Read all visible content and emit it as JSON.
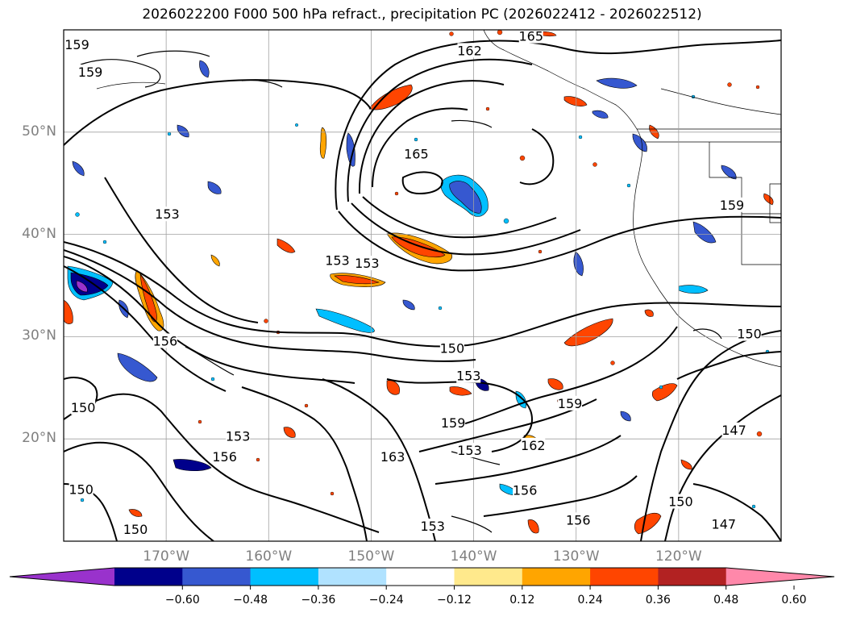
{
  "title": "2026022200 F000 500 hPa refract., precipitation PC (2026022412 - 2026022512)",
  "map": {
    "extent": {
      "lon_min": -180,
      "lon_max": -110,
      "lat_min": 10,
      "lat_max": 60
    },
    "lon_ticks": [
      {
        "lon": -170,
        "label": "170°W"
      },
      {
        "lon": -160,
        "label": "160°W"
      },
      {
        "lon": -150,
        "label": "150°W"
      },
      {
        "lon": -140,
        "label": "140°W"
      },
      {
        "lon": -130,
        "label": "130°W"
      },
      {
        "lon": -120,
        "label": "120°W"
      }
    ],
    "lat_ticks": [
      {
        "lat": 50,
        "label": "50°N"
      },
      {
        "lat": 40,
        "label": "40°N"
      },
      {
        "lat": 30,
        "label": "30°N"
      },
      {
        "lat": 20,
        "label": "20°N"
      }
    ],
    "contour_labels": [
      {
        "text": "165",
        "lon": -134.4,
        "lat": 59.4
      },
      {
        "text": "162",
        "lon": -140.4,
        "lat": 58.0
      },
      {
        "text": "159",
        "lon": -178.7,
        "lat": 58.6
      },
      {
        "text": "159",
        "lon": -177.4,
        "lat": 55.9
      },
      {
        "text": "165",
        "lon": -145.6,
        "lat": 47.9
      },
      {
        "text": "153",
        "lon": -169.9,
        "lat": 42.0
      },
      {
        "text": "153",
        "lon": -153.3,
        "lat": 37.5
      },
      {
        "text": "153",
        "lon": -150.4,
        "lat": 37.2
      },
      {
        "text": "159",
        "lon": -114.8,
        "lat": 42.9
      },
      {
        "text": "150",
        "lon": -113.1,
        "lat": 30.3
      },
      {
        "text": "156",
        "lon": -170.1,
        "lat": 29.6
      },
      {
        "text": "150",
        "lon": -142.1,
        "lat": 28.9
      },
      {
        "text": "153",
        "lon": -140.5,
        "lat": 26.2
      },
      {
        "text": "159",
        "lon": -130.6,
        "lat": 23.5
      },
      {
        "text": "150",
        "lon": -178.1,
        "lat": 23.1
      },
      {
        "text": "159",
        "lon": -142.0,
        "lat": 21.6
      },
      {
        "text": "162",
        "lon": -134.2,
        "lat": 19.4
      },
      {
        "text": "153",
        "lon": -163.0,
        "lat": 20.3
      },
      {
        "text": "153",
        "lon": -140.4,
        "lat": 18.9
      },
      {
        "text": "147",
        "lon": -114.6,
        "lat": 20.9
      },
      {
        "text": "156",
        "lon": -164.3,
        "lat": 18.3
      },
      {
        "text": "163",
        "lon": -147.9,
        "lat": 18.3
      },
      {
        "text": "156",
        "lon": -135.0,
        "lat": 15.0
      },
      {
        "text": "150",
        "lon": -178.3,
        "lat": 15.1
      },
      {
        "text": "150",
        "lon": -119.8,
        "lat": 13.9
      },
      {
        "text": "156",
        "lon": -129.8,
        "lat": 12.1
      },
      {
        "text": "150",
        "lon": -173.0,
        "lat": 11.2
      },
      {
        "text": "147",
        "lon": -115.6,
        "lat": 11.7
      },
      {
        "text": "153",
        "lon": -144.0,
        "lat": 11.5
      }
    ]
  },
  "colorbar": {
    "ticks": [
      "−0.60",
      "−0.48",
      "−0.36",
      "−0.24",
      "−0.12",
      "0.12",
      "0.24",
      "0.36",
      "0.48",
      "0.60"
    ],
    "bins": [
      {
        "color": "#9932cc"
      },
      {
        "color": "#00008b"
      },
      {
        "color": "#3658d0"
      },
      {
        "color": "#00bfff"
      },
      {
        "color": "#b0e2ff"
      },
      {
        "color": "#ffffff"
      },
      {
        "color": "#ffe98c"
      },
      {
        "color": "#ffa500"
      },
      {
        "color": "#ff4500"
      },
      {
        "color": "#b22222"
      },
      {
        "color": "#ff88aa"
      }
    ]
  }
}
